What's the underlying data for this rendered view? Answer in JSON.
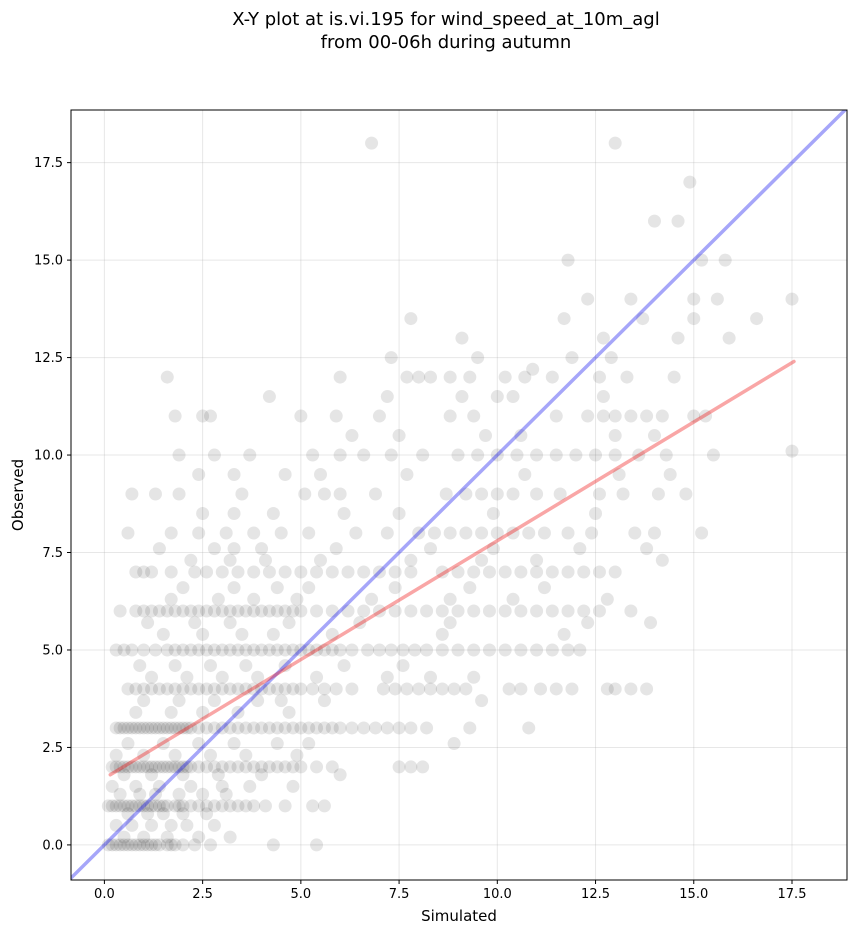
{
  "chart_data": {
    "type": "scatter",
    "title": "X-Y plot at is.vi.195 for wind_speed_at_10m_agl",
    "subtitle": "from 00-06h during autumn",
    "xlabel": "Simulated",
    "ylabel": "Observed",
    "xlim": [
      -0.85,
      18.9
    ],
    "ylim": [
      -0.9,
      18.85
    ],
    "xticks": [
      0.0,
      2.5,
      5.0,
      7.5,
      10.0,
      12.5,
      15.0,
      17.5
    ],
    "yticks": [
      0.0,
      2.5,
      5.0,
      7.5,
      10.0,
      12.5,
      15.0,
      17.5
    ],
    "xtick_labels": [
      "0.0",
      "2.5",
      "5.0",
      "7.5",
      "10.0",
      "12.5",
      "15.0",
      "17.5"
    ],
    "ytick_labels": [
      "0.0",
      "2.5",
      "5.0",
      "7.5",
      "10.0",
      "12.5",
      "15.0",
      "17.5"
    ],
    "grid": true,
    "colors": {
      "points": "#000000",
      "identity_line": "#0000ee",
      "fit_line": "#ee0000"
    },
    "lines": [
      {
        "kind": "identity",
        "x": [
          -0.85,
          18.9
        ],
        "y": [
          -0.85,
          18.9
        ]
      },
      {
        "kind": "regression",
        "x": [
          0.15,
          17.55
        ],
        "y": [
          1.8,
          12.4
        ]
      }
    ],
    "series": [
      {
        "rows": [
          {
            "y": 0,
            "x": [
              0.1,
              0.2,
              0.3,
              0.4,
              0.5,
              0.6,
              0.7,
              0.8,
              0.9,
              1.0,
              1.1,
              1.2,
              1.3,
              1.4,
              1.6,
              1.7,
              1.8,
              2.0,
              2.3,
              2.7,
              4.3,
              5.4
            ]
          },
          {
            "y": 0.2,
            "x": [
              0.5,
              1.0,
              1.6,
              2.4,
              3.2
            ]
          },
          {
            "y": 0.5,
            "x": [
              0.3,
              0.7,
              1.2,
              1.7,
              2.1,
              2.8
            ]
          },
          {
            "y": 0.8,
            "x": [
              0.6,
              1.1,
              1.5,
              2.0,
              2.6
            ]
          },
          {
            "y": 1,
            "x": [
              0.1,
              0.2,
              0.3,
              0.4,
              0.5,
              0.6,
              0.7,
              0.8,
              0.9,
              1.0,
              1.1,
              1.2,
              1.3,
              1.4,
              1.5,
              1.6,
              1.8,
              1.9,
              2.0,
              2.2,
              2.4,
              2.6,
              2.8,
              3.0,
              3.2,
              3.4,
              3.6,
              3.8,
              4.1,
              4.6,
              5.3,
              5.6
            ]
          },
          {
            "y": 1.3,
            "x": [
              0.4,
              0.9,
              1.3,
              1.9,
              2.5,
              3.1
            ]
          },
          {
            "y": 1.5,
            "x": [
              0.2,
              0.8,
              1.4,
              2.2,
              3.0,
              3.7,
              4.8
            ]
          },
          {
            "y": 1.8,
            "x": [
              0.5,
              1.2,
              2.0,
              2.9,
              4.0,
              6.0
            ]
          },
          {
            "y": 2,
            "x": [
              0.2,
              0.3,
              0.4,
              0.5,
              0.6,
              0.7,
              0.8,
              0.9,
              1.0,
              1.1,
              1.2,
              1.3,
              1.4,
              1.5,
              1.6,
              1.7,
              1.8,
              1.9,
              2.0,
              2.1,
              2.2,
              2.4,
              2.6,
              2.8,
              3.0,
              3.2,
              3.4,
              3.6,
              3.8,
              4.0,
              4.2,
              4.4,
              4.6,
              4.8,
              5.0,
              5.4,
              5.8,
              7.5,
              7.8,
              8.1
            ]
          },
          {
            "y": 2.3,
            "x": [
              0.3,
              1.0,
              1.8,
              2.7,
              3.6,
              4.9
            ]
          },
          {
            "y": 2.6,
            "x": [
              0.6,
              1.5,
              2.4,
              3.3,
              4.4,
              5.2,
              8.9
            ]
          },
          {
            "y": 3,
            "x": [
              0.3,
              0.4,
              0.5,
              0.6,
              0.7,
              0.8,
              0.9,
              1.0,
              1.1,
              1.2,
              1.3,
              1.4,
              1.5,
              1.6,
              1.7,
              1.8,
              1.9,
              2.0,
              2.1,
              2.2,
              2.4,
              2.6,
              2.8,
              3.0,
              3.2,
              3.4,
              3.6,
              3.8,
              4.0,
              4.2,
              4.4,
              4.6,
              4.8,
              5.0,
              5.2,
              5.4,
              5.6,
              5.8,
              6.0,
              6.3,
              6.6,
              6.9,
              7.2,
              7.5,
              7.8,
              8.2,
              9.3,
              10.8
            ]
          },
          {
            "y": 3.4,
            "x": [
              0.8,
              1.7,
              2.5,
              3.4,
              4.7
            ]
          },
          {
            "y": 3.7,
            "x": [
              1.0,
              1.9,
              2.8,
              3.9,
              4.5,
              5.6,
              9.6
            ]
          },
          {
            "y": 4,
            "x": [
              0.6,
              0.8,
              1.0,
              1.2,
              1.4,
              1.6,
              1.8,
              2.0,
              2.2,
              2.4,
              2.6,
              2.8,
              3.0,
              3.2,
              3.4,
              3.6,
              3.8,
              4.0,
              4.2,
              4.4,
              4.6,
              4.8,
              5.0,
              5.3,
              5.6,
              5.9,
              6.3,
              7.1,
              7.4,
              7.7,
              8.0,
              8.3,
              8.6,
              8.9,
              9.2,
              10.3,
              10.6,
              11.1,
              11.5,
              11.9,
              12.8,
              13.0,
              13.4,
              13.8
            ]
          },
          {
            "y": 4.3,
            "x": [
              1.2,
              2.1,
              3.0,
              3.9,
              5.4,
              7.2,
              8.3,
              9.4
            ]
          },
          {
            "y": 4.6,
            "x": [
              0.9,
              1.8,
              2.7,
              3.6,
              4.6,
              6.1,
              7.6
            ]
          },
          {
            "y": 5,
            "x": [
              0.3,
              0.5,
              0.7,
              1.0,
              1.3,
              1.6,
              1.8,
              2.0,
              2.2,
              2.4,
              2.6,
              2.8,
              3.0,
              3.2,
              3.4,
              3.6,
              3.8,
              4.0,
              4.2,
              4.4,
              4.6,
              4.8,
              5.0,
              5.2,
              5.4,
              5.6,
              5.8,
              6.0,
              6.3,
              6.7,
              7.0,
              7.3,
              7.6,
              7.9,
              8.2,
              8.6,
              9.0,
              9.4,
              9.8,
              10.2,
              10.6,
              11.0,
              11.4,
              11.8,
              12.1
            ]
          },
          {
            "y": 5.4,
            "x": [
              1.5,
              2.5,
              3.5,
              4.3,
              5.8,
              8.6,
              11.7
            ]
          },
          {
            "y": 5.7,
            "x": [
              1.1,
              2.3,
              3.2,
              4.7,
              6.5,
              8.8,
              12.3,
              13.9
            ]
          },
          {
            "y": 6,
            "x": [
              0.4,
              0.8,
              1.0,
              1.2,
              1.4,
              1.6,
              1.8,
              2.0,
              2.2,
              2.4,
              2.6,
              2.8,
              3.0,
              3.2,
              3.4,
              3.6,
              3.8,
              4.0,
              4.2,
              4.4,
              4.6,
              4.8,
              5.0,
              5.4,
              5.8,
              6.2,
              6.6,
              7.0,
              7.4,
              7.8,
              8.2,
              8.6,
              9.0,
              9.4,
              9.8,
              10.2,
              10.6,
              11.0,
              11.4,
              11.8,
              12.2,
              12.6,
              13.4
            ]
          },
          {
            "y": 6.3,
            "x": [
              1.7,
              2.9,
              3.8,
              4.9,
              6.8,
              8.8,
              10.4,
              12.8
            ]
          },
          {
            "y": 6.6,
            "x": [
              2.0,
              3.3,
              4.4,
              5.2,
              7.4,
              9.3,
              11.2
            ]
          },
          {
            "y": 7,
            "x": [
              0.8,
              1.0,
              1.2,
              1.7,
              2.3,
              2.6,
              3.0,
              3.4,
              3.8,
              4.2,
              4.6,
              5.0,
              5.4,
              5.8,
              6.2,
              6.6,
              7.0,
              7.4,
              7.8,
              8.6,
              9.0,
              9.4,
              9.8,
              10.2,
              10.6,
              11.0,
              11.4,
              11.8,
              12.2,
              12.6,
              13.0
            ]
          },
          {
            "y": 7.3,
            "x": [
              2.2,
              3.2,
              4.1,
              5.5,
              7.8,
              9.6,
              11.0,
              14.2
            ]
          },
          {
            "y": 7.6,
            "x": [
              1.4,
              2.8,
              3.3,
              4.0,
              5.9,
              8.3,
              9.9,
              12.1,
              13.8
            ]
          },
          {
            "y": 8,
            "x": [
              0.6,
              1.7,
              2.4,
              3.1,
              3.8,
              4.5,
              5.2,
              6.4,
              7.2,
              8.0,
              8.4,
              8.8,
              9.2,
              9.6,
              10.0,
              10.4,
              10.8,
              11.2,
              11.8,
              12.4,
              13.5,
              14.0,
              15.2
            ]
          },
          {
            "y": 8.5,
            "x": [
              2.5,
              3.3,
              4.3,
              6.1,
              7.5,
              9.9,
              12.5
            ]
          },
          {
            "y": 9,
            "x": [
              0.7,
              1.3,
              1.9,
              3.5,
              5.1,
              5.6,
              6.0,
              6.9,
              8.7,
              9.2,
              9.6,
              10.0,
              10.4,
              11.0,
              11.6,
              12.6,
              13.2,
              14.1,
              14.8
            ]
          },
          {
            "y": 9.5,
            "x": [
              2.4,
              3.3,
              4.6,
              5.5,
              7.7,
              10.7,
              13.1,
              14.4
            ]
          },
          {
            "y": 10,
            "x": [
              1.9,
              2.8,
              3.7,
              5.3,
              6.0,
              6.6,
              7.3,
              8.1,
              9.0,
              9.5,
              10.0,
              10.5,
              11.0,
              11.5,
              12.0,
              12.5,
              13.0,
              13.6,
              14.3,
              15.5
            ]
          },
          {
            "y": 10.5,
            "x": [
              6.3,
              7.5,
              9.7,
              10.6,
              13.0,
              14.0
            ]
          },
          {
            "y": 11,
            "x": [
              1.8,
              2.5,
              2.7,
              5.0,
              5.9,
              7.0,
              8.8,
              9.4,
              11.5,
              12.3,
              12.7,
              13.0,
              13.4,
              13.8,
              14.2,
              15.0,
              15.3
            ]
          },
          {
            "y": 11.5,
            "x": [
              4.2,
              7.2,
              9.1,
              10.0,
              10.4,
              12.7
            ]
          },
          {
            "y": 12,
            "x": [
              1.6,
              6.0,
              7.7,
              8.0,
              8.3,
              8.8,
              9.3,
              10.2,
              10.7,
              11.4,
              12.6,
              13.3,
              14.5
            ]
          },
          {
            "y": 12.5,
            "x": [
              7.3,
              9.5,
              11.9,
              12.9
            ]
          },
          {
            "y": 13,
            "x": [
              9.1,
              12.7,
              14.6,
              15.9
            ]
          },
          {
            "y": 13.5,
            "x": [
              7.8,
              11.7,
              13.7,
              15.0,
              16.6
            ]
          },
          {
            "y": 14,
            "x": [
              12.3,
              13.4,
              15.0,
              15.6,
              17.5
            ]
          },
          {
            "y": 15,
            "x": [
              11.8,
              15.2,
              15.8
            ]
          },
          {
            "y": 16,
            "x": [
              14.0,
              14.6
            ]
          },
          {
            "y": 17,
            "x": [
              14.9
            ]
          },
          {
            "y": 18,
            "x": [
              6.8,
              13.0
            ]
          },
          {
            "y": 10.1,
            "x": [
              17.5
            ]
          },
          {
            "y": 12.2,
            "x": [
              10.9
            ]
          }
        ]
      }
    ]
  }
}
